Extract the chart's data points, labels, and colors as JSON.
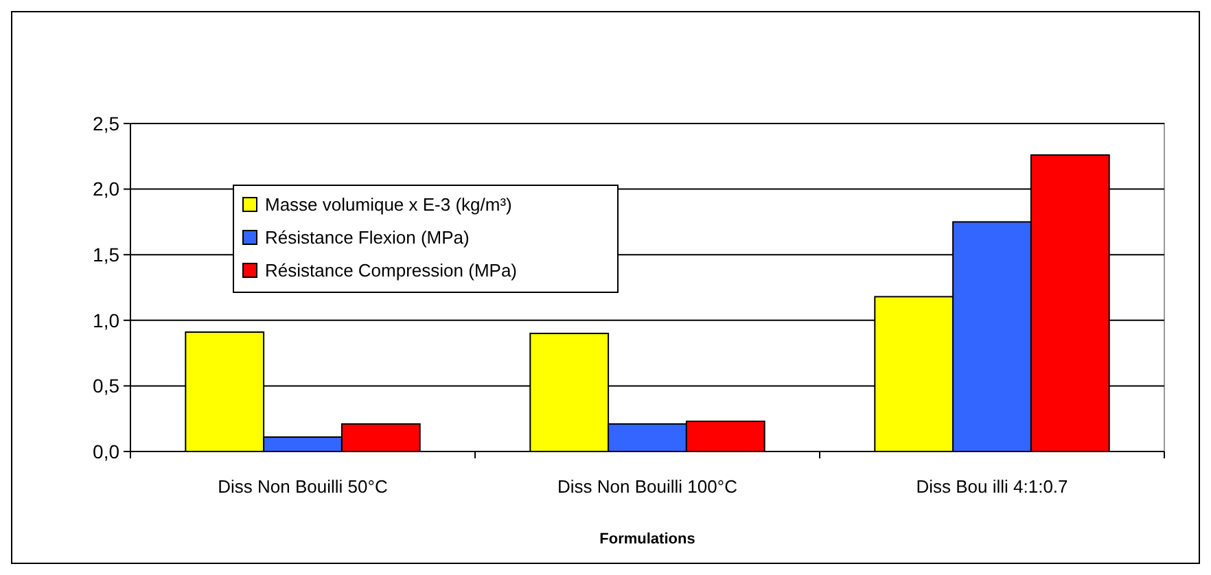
{
  "chart_data": {
    "type": "bar",
    "xlabel": "Formulations",
    "categories": [
      "Diss Non Bouilli 50°C",
      "Diss Non Bouilli 100°C",
      "Diss Bou illi 4:1:0.7"
    ],
    "series": [
      {
        "name": "Masse volumique x E-3 (kg/m³)",
        "color": "#ffff00",
        "values": [
          0.91,
          0.9,
          1.18
        ]
      },
      {
        "name": "Résistance Flexion (MPa)",
        "color": "#3366ff",
        "values": [
          0.11,
          0.21,
          1.75
        ]
      },
      {
        "name": "Résistance Compression (MPa)",
        "color": "#ff0000",
        "values": [
          0.21,
          0.23,
          2.26
        ]
      }
    ],
    "ylim": [
      0,
      2.5
    ],
    "yticks": [
      {
        "value": 0,
        "label": "0,0"
      },
      {
        "value": 0.5,
        "label": "0,5"
      },
      {
        "value": 1,
        "label": "1,0"
      },
      {
        "value": 1.5,
        "label": "1,5"
      },
      {
        "value": 2,
        "label": "2,0"
      },
      {
        "value": 2.5,
        "label": "2,5"
      }
    ],
    "grid": "y",
    "legend": "top left"
  }
}
